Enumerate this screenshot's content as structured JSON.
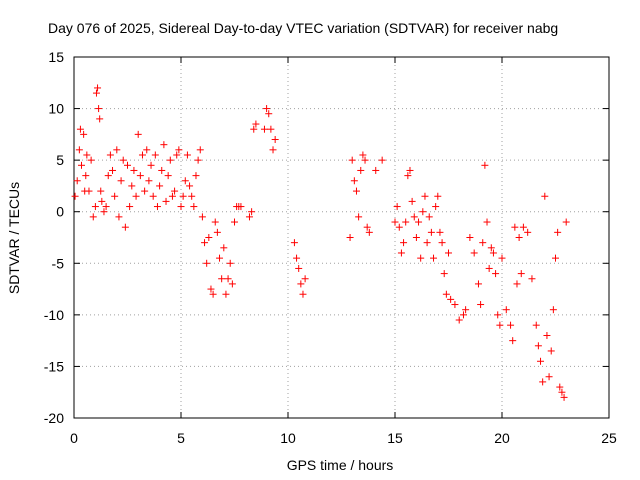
{
  "chart_data": {
    "type": "scatter",
    "title": "Day 076 of 2025, Sidereal Day-to-day VTEC variation (SDTVAR) for receiver nabg",
    "xlabel": "GPS time / hours",
    "ylabel": "SDTVAR / TECUs",
    "xlim": [
      0,
      25
    ],
    "ylim": [
      -20,
      15
    ],
    "xticks": [
      "0",
      "5",
      "10",
      "15",
      "20",
      "25"
    ],
    "yticks": [
      "15",
      "10",
      "5",
      "0",
      "-5",
      "-10",
      "-15",
      "-20"
    ],
    "grid": true,
    "marker": "+",
    "color": "#ff0000",
    "series": [
      {
        "name": "SDTVAR",
        "x": [
          0.05,
          0.15,
          0.25,
          0.3,
          0.35,
          0.45,
          0.5,
          0.55,
          0.6,
          0.7,
          0.8,
          0.9,
          1.0,
          1.05,
          1.1,
          1.15,
          1.2,
          1.25,
          1.3,
          1.4,
          1.5,
          1.6,
          1.7,
          1.8,
          1.9,
          2.0,
          2.1,
          2.2,
          2.3,
          2.4,
          2.5,
          2.6,
          2.7,
          2.8,
          2.9,
          3.0,
          3.1,
          3.2,
          3.3,
          3.4,
          3.5,
          3.6,
          3.7,
          3.8,
          3.9,
          4.0,
          4.1,
          4.2,
          4.3,
          4.4,
          4.5,
          4.6,
          4.7,
          4.8,
          4.9,
          5.0,
          5.1,
          5.2,
          5.3,
          5.4,
          5.5,
          5.6,
          5.7,
          5.8,
          5.9,
          6.0,
          6.1,
          6.2,
          6.3,
          6.4,
          6.5,
          6.6,
          6.7,
          6.8,
          6.9,
          7.0,
          7.1,
          7.2,
          7.3,
          7.4,
          7.5,
          7.6,
          7.7,
          7.8,
          8.2,
          8.3,
          8.4,
          8.5,
          8.9,
          9.0,
          9.1,
          9.2,
          9.3,
          9.4,
          10.3,
          10.4,
          10.5,
          10.6,
          10.7,
          10.8,
          12.9,
          13.0,
          13.1,
          13.2,
          13.3,
          13.4,
          13.5,
          13.6,
          13.7,
          13.8,
          14.1,
          14.4,
          15.0,
          15.1,
          15.2,
          15.3,
          15.4,
          15.5,
          15.6,
          15.7,
          15.8,
          15.9,
          16.0,
          16.1,
          16.2,
          16.3,
          16.4,
          16.5,
          16.6,
          16.7,
          16.8,
          16.9,
          17.0,
          17.1,
          17.2,
          17.3,
          17.4,
          17.5,
          17.6,
          17.8,
          18.0,
          18.2,
          18.3,
          18.5,
          18.7,
          18.9,
          19.0,
          19.1,
          19.2,
          19.3,
          19.4,
          19.5,
          19.6,
          19.7,
          19.8,
          19.9,
          20.0,
          20.2,
          20.4,
          20.5,
          20.6,
          20.7,
          20.8,
          20.9,
          21.0,
          21.2,
          21.4,
          21.6,
          21.7,
          21.8,
          21.9,
          22.0,
          22.1,
          22.2,
          22.3,
          22.4,
          22.5,
          22.6,
          22.7,
          22.8,
          22.9,
          23.0
        ],
        "y": [
          1.5,
          3.0,
          6.0,
          8.0,
          4.5,
          7.5,
          2.0,
          3.5,
          5.5,
          2.0,
          5.0,
          -0.5,
          0.5,
          11.5,
          12.0,
          10.0,
          9.0,
          2.0,
          1.0,
          0.0,
          0.5,
          3.5,
          5.5,
          4.0,
          1.5,
          6.0,
          -0.5,
          3.0,
          5.0,
          -1.5,
          4.5,
          0.5,
          2.5,
          4.0,
          1.5,
          7.5,
          3.5,
          5.5,
          2.0,
          6.0,
          3.0,
          4.5,
          1.5,
          5.5,
          0.5,
          2.5,
          4.0,
          6.5,
          1.0,
          3.5,
          5.0,
          1.5,
          2.0,
          5.5,
          6.0,
          0.5,
          1.5,
          3.0,
          5.5,
          2.5,
          1.5,
          0.5,
          3.5,
          5.0,
          6.0,
          -0.5,
          -3.0,
          -5.0,
          -2.5,
          -7.5,
          -8.0,
          -1.0,
          -2.0,
          -4.5,
          -6.5,
          -3.5,
          -8.0,
          -6.5,
          -5.0,
          -7.0,
          -1.0,
          0.5,
          0.5,
          0.5,
          -0.5,
          0.0,
          8.0,
          8.5,
          8.0,
          10.0,
          9.5,
          8.0,
          6.0,
          7.0,
          -3.0,
          -4.5,
          -5.5,
          -7.0,
          -8.0,
          -6.5,
          -2.5,
          5.0,
          3.0,
          2.0,
          -0.5,
          4.0,
          5.5,
          5.0,
          -1.5,
          -2.0,
          4.0,
          5.0,
          -1.0,
          0.5,
          -1.5,
          -4.0,
          -3.0,
          -1.0,
          3.5,
          4.0,
          1.0,
          -0.5,
          -2.5,
          -1.0,
          -4.5,
          0.0,
          1.5,
          -3.0,
          -0.5,
          -2.0,
          -4.5,
          0.5,
          1.5,
          -2.0,
          -3.0,
          -6.0,
          -8.0,
          -4.0,
          -8.5,
          -9.0,
          -10.5,
          -10.0,
          -9.5,
          -2.5,
          -4.0,
          -7.0,
          -9.0,
          -3.0,
          4.5,
          -1.0,
          -5.5,
          -3.5,
          -4.0,
          -6.0,
          -10.0,
          -11.0,
          -4.5,
          -9.5,
          -11.0,
          -12.5,
          -1.5,
          -7.0,
          -2.5,
          -6.0,
          -1.5,
          -2.0,
          -6.5,
          -11.0,
          -13.0,
          -14.5,
          -16.5,
          1.5,
          -12.0,
          -16.0,
          -13.5,
          -9.5,
          -4.5,
          -2.0,
          -17.0,
          -17.5,
          -18.0,
          -1.0
        ]
      }
    ]
  }
}
